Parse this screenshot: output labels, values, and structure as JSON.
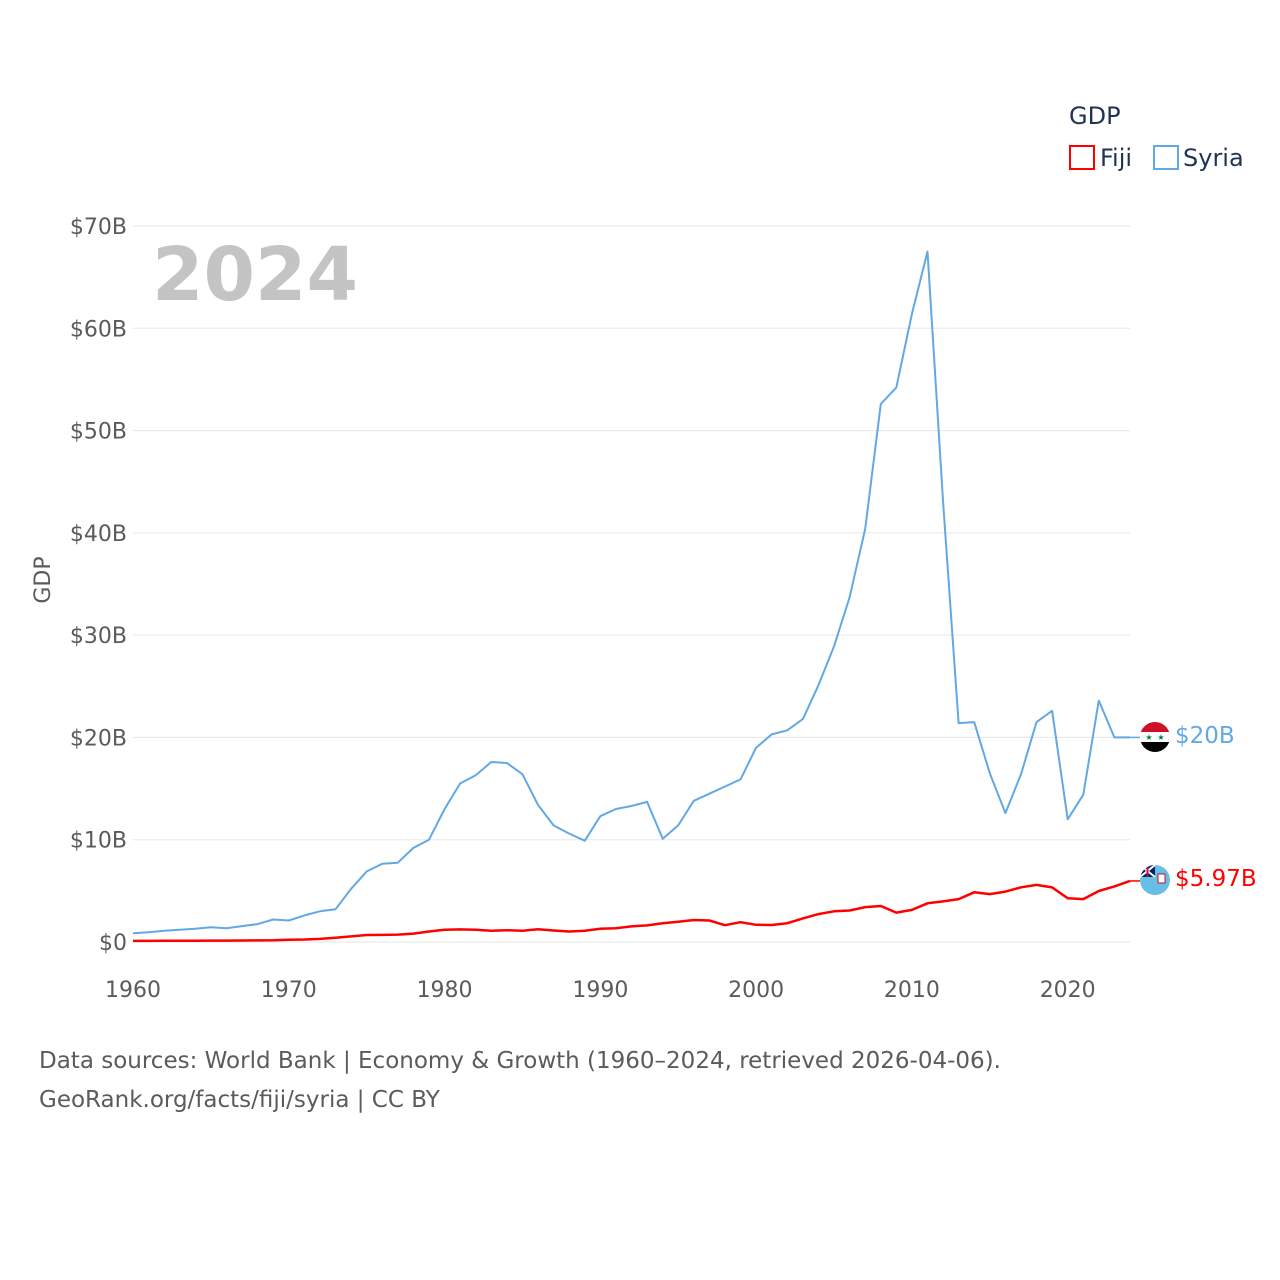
{
  "chart_data": {
    "type": "line",
    "ylabel": "GDP",
    "year_stamp": "2024",
    "ylim": [
      0,
      70
    ],
    "xlim": [
      1960,
      2024
    ],
    "y_ticks": [
      {
        "value": 0,
        "label": "$0"
      },
      {
        "value": 10,
        "label": "$10B"
      },
      {
        "value": 20,
        "label": "$20B"
      },
      {
        "value": 30,
        "label": "$30B"
      },
      {
        "value": 40,
        "label": "$40B"
      },
      {
        "value": 50,
        "label": "$50B"
      },
      {
        "value": 60,
        "label": "$60B"
      },
      {
        "value": 70,
        "label": "$70B"
      }
    ],
    "x_ticks": [
      {
        "value": 1960,
        "label": "1960"
      },
      {
        "value": 1970,
        "label": "1970"
      },
      {
        "value": 1980,
        "label": "1980"
      },
      {
        "value": 1990,
        "label": "1990"
      },
      {
        "value": 2000,
        "label": "2000"
      },
      {
        "value": 2010,
        "label": "2010"
      },
      {
        "value": 2020,
        "label": "2020"
      }
    ],
    "legend": {
      "title": "GDP",
      "placement": "top-right"
    },
    "x": [
      1960,
      1961,
      1962,
      1963,
      1964,
      1965,
      1966,
      1967,
      1968,
      1969,
      1970,
      1971,
      1972,
      1973,
      1974,
      1975,
      1976,
      1977,
      1978,
      1979,
      1980,
      1981,
      1982,
      1983,
      1984,
      1985,
      1986,
      1987,
      1988,
      1989,
      1990,
      1991,
      1992,
      1993,
      1994,
      1995,
      1996,
      1997,
      1998,
      1999,
      2000,
      2001,
      2002,
      2003,
      2004,
      2005,
      2006,
      2007,
      2008,
      2009,
      2010,
      2011,
      2012,
      2013,
      2014,
      2015,
      2016,
      2017,
      2018,
      2019,
      2020,
      2021,
      2022,
      2023,
      2024
    ],
    "series": [
      {
        "name": "Fiji",
        "color": "#ff0000",
        "end_label": "$5.97B",
        "values": [
          0.11,
          0.11,
          0.12,
          0.12,
          0.13,
          0.14,
          0.14,
          0.15,
          0.16,
          0.17,
          0.22,
          0.24,
          0.3,
          0.41,
          0.55,
          0.68,
          0.69,
          0.72,
          0.82,
          1.03,
          1.2,
          1.23,
          1.19,
          1.1,
          1.15,
          1.1,
          1.25,
          1.12,
          1.03,
          1.1,
          1.3,
          1.35,
          1.53,
          1.62,
          1.84,
          1.98,
          2.15,
          2.1,
          1.64,
          1.94,
          1.68,
          1.66,
          1.84,
          2.31,
          2.73,
          3.0,
          3.08,
          3.41,
          3.52,
          2.87,
          3.14,
          3.78,
          3.97,
          4.19,
          4.86,
          4.68,
          4.93,
          5.35,
          5.58,
          5.34,
          4.28,
          4.19,
          4.99,
          5.44,
          5.97
        ]
      },
      {
        "name": "Syria",
        "color": "#62a8e4",
        "end_label": "$20B",
        "values": [
          0.86,
          0.95,
          1.1,
          1.2,
          1.3,
          1.45,
          1.35,
          1.55,
          1.75,
          2.2,
          2.1,
          2.6,
          3.0,
          3.2,
          5.2,
          6.9,
          7.65,
          7.75,
          9.2,
          10.0,
          13.0,
          15.5,
          16.3,
          17.6,
          17.5,
          16.4,
          13.4,
          11.4,
          10.6,
          9.9,
          12.3,
          13.0,
          13.3,
          13.7,
          10.1,
          11.4,
          13.8,
          14.5,
          15.2,
          15.9,
          19.0,
          20.3,
          20.7,
          21.8,
          25.1,
          28.9,
          33.7,
          40.4,
          52.6,
          54.2,
          61.4,
          67.5,
          43.0,
          21.4,
          21.5,
          16.5,
          12.6,
          16.4,
          21.5,
          22.6,
          12.0,
          14.4,
          23.6,
          20.0,
          20.0
        ]
      }
    ]
  },
  "footer": {
    "line1": "Data sources: World Bank | Economy & Growth (1960–2024, retrieved 2026-04-06).",
    "line2": "GeoRank.org/facts/fiji/syria | CC BY"
  }
}
